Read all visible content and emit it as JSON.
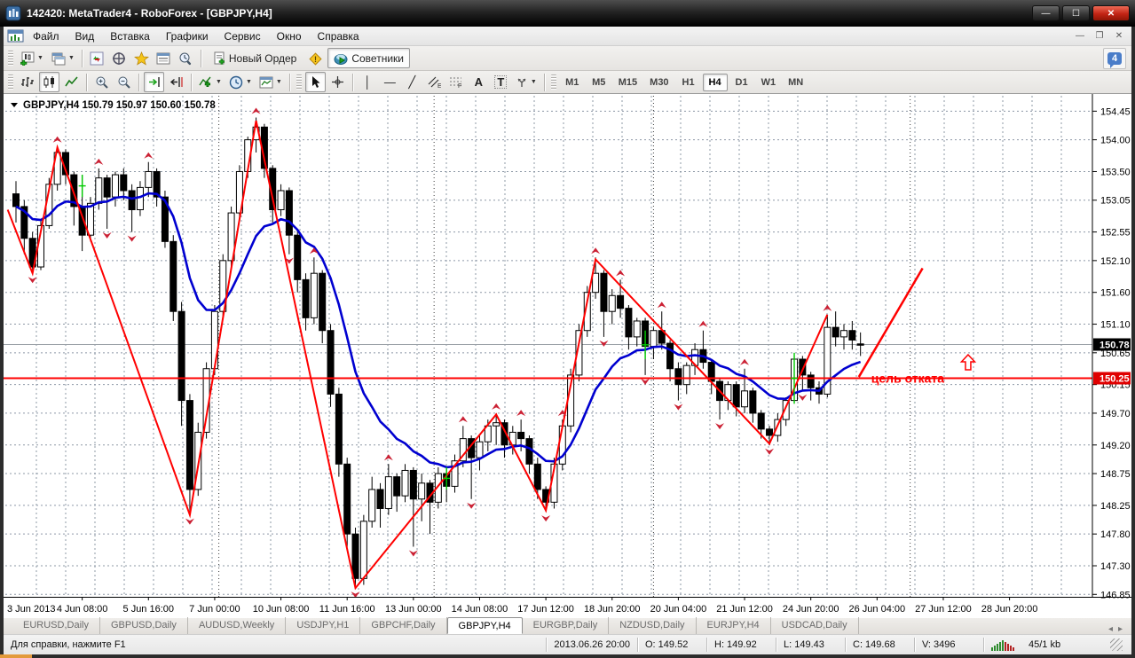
{
  "window": {
    "title": "142420: MetaTrader4 - RoboForex - [GBPJPY,H4]"
  },
  "menu": {
    "items": [
      "Файл",
      "Вид",
      "Вставка",
      "Графики",
      "Сервис",
      "Окно",
      "Справка"
    ]
  },
  "toolbar1": {
    "new_order_label": "Новый Ордер",
    "advisors_label": "Советники",
    "community_badge": "4"
  },
  "timeframes": {
    "items": [
      "M1",
      "M5",
      "M15",
      "M30",
      "H1",
      "H4",
      "D1",
      "W1",
      "MN"
    ],
    "active": "H4"
  },
  "drawing_tools": {
    "text_tool": "A",
    "label_tool": "T",
    "channel_tag": "E",
    "fibo_tag": "F"
  },
  "chart": {
    "symbol_header": "GBPJPY,H4",
    "ohlc_header": "150.79 150.97 150.60 150.78",
    "price_ticks": [
      "154.45",
      "154.00",
      "153.50",
      "153.05",
      "152.55",
      "152.10",
      "151.60",
      "151.10",
      "150.65",
      "150.15",
      "149.70",
      "149.20",
      "148.75",
      "148.25",
      "147.80",
      "147.30",
      "146.85"
    ],
    "time_labels": [
      "3 Jun 2013",
      "4 Jun 08:00",
      "5 Jun 16:00",
      "7 Jun 00:00",
      "10 Jun 08:00",
      "11 Jun 16:00",
      "13 Jun 00:00",
      "14 Jun 08:00",
      "17 Jun 12:00",
      "18 Jun 20:00",
      "20 Jun 04:00",
      "21 Jun 12:00",
      "24 Jun 20:00",
      "26 Jun 04:00",
      "27 Jun 12:00",
      "28 Jun 20:00"
    ],
    "bid_price": 150.78,
    "bid_label": "150.78",
    "hline_price": 150.25,
    "hline_label": "150.25",
    "annotation": {
      "text": "цель отката",
      "bar": 103.3,
      "price": 150.25
    },
    "big_arrow": {
      "bar": 115,
      "price": 150.62
    },
    "colors": {
      "bull": "#ffffff",
      "bear": "#000000",
      "wick": "#000000",
      "ma": "#0000d0",
      "zigzag": "#ff0000",
      "hline": "#ff0000",
      "bid_line": "#9aa0a6",
      "grid": "#8d98a6",
      "fractal": "#cb2134",
      "marker": "#00cc00",
      "annotation": "#ff0000"
    },
    "candles": [
      [
        153.15,
        153.35,
        152.7,
        152.95
      ],
      [
        152.95,
        153.05,
        152.2,
        152.45
      ],
      [
        152.45,
        152.55,
        151.9,
        152.0
      ],
      [
        152.0,
        152.75,
        151.95,
        152.65
      ],
      [
        152.65,
        153.4,
        152.6,
        153.3
      ],
      [
        153.3,
        153.9,
        153.2,
        153.8
      ],
      [
        153.8,
        153.85,
        153.3,
        153.45
      ],
      [
        153.45,
        153.5,
        152.65,
        152.95
      ],
      [
        152.95,
        153.45,
        152.25,
        152.5
      ],
      [
        152.5,
        153.1,
        152.4,
        153.0
      ],
      [
        153.0,
        153.55,
        152.9,
        153.4
      ],
      [
        153.4,
        153.45,
        152.6,
        153.1
      ],
      [
        153.1,
        153.5,
        152.95,
        153.45
      ],
      [
        153.45,
        153.55,
        153.05,
        153.2
      ],
      [
        153.2,
        153.3,
        152.55,
        152.9
      ],
      [
        152.9,
        153.35,
        152.8,
        153.25
      ],
      [
        153.25,
        153.65,
        153.1,
        153.5
      ],
      [
        153.5,
        153.55,
        152.95,
        153.1
      ],
      [
        153.1,
        153.2,
        152.3,
        152.4
      ],
      [
        152.4,
        152.5,
        151.15,
        151.3
      ],
      [
        151.3,
        151.45,
        149.5,
        149.9
      ],
      [
        149.9,
        150.0,
        148.1,
        148.5
      ],
      [
        148.5,
        149.55,
        148.4,
        149.4
      ],
      [
        149.4,
        150.5,
        149.3,
        150.4
      ],
      [
        150.4,
        151.4,
        150.3,
        151.3
      ],
      [
        151.3,
        152.2,
        151.2,
        152.1
      ],
      [
        152.1,
        152.95,
        152.0,
        152.85
      ],
      [
        152.85,
        153.6,
        152.75,
        153.5
      ],
      [
        153.5,
        154.05,
        153.4,
        154.0
      ],
      [
        154.0,
        154.35,
        153.8,
        154.2
      ],
      [
        154.2,
        154.25,
        153.4,
        153.55
      ],
      [
        153.55,
        153.6,
        152.7,
        152.9
      ],
      [
        152.9,
        153.3,
        152.8,
        153.2
      ],
      [
        153.2,
        153.25,
        152.2,
        152.5
      ],
      [
        152.5,
        152.6,
        151.6,
        151.8
      ],
      [
        151.8,
        151.9,
        151.0,
        151.2
      ],
      [
        151.2,
        152.15,
        151.1,
        151.9
      ],
      [
        151.9,
        151.95,
        150.8,
        151.0
      ],
      [
        151.0,
        151.1,
        149.8,
        150.0
      ],
      [
        150.0,
        150.1,
        148.7,
        148.9
      ],
      [
        148.9,
        149.0,
        147.6,
        147.8
      ],
      [
        147.8,
        147.9,
        146.95,
        147.1
      ],
      [
        147.1,
        148.1,
        147.0,
        148.0
      ],
      [
        148.0,
        148.7,
        147.9,
        148.5
      ],
      [
        148.5,
        148.6,
        147.9,
        148.2
      ],
      [
        148.2,
        148.9,
        148.1,
        148.7
      ],
      [
        148.7,
        148.75,
        148.15,
        148.4
      ],
      [
        148.4,
        148.9,
        148.3,
        148.8
      ],
      [
        148.8,
        148.85,
        147.6,
        148.35
      ],
      [
        148.35,
        148.75,
        148.0,
        148.6
      ],
      [
        148.6,
        148.65,
        147.8,
        148.3
      ],
      [
        148.3,
        148.85,
        148.2,
        148.75
      ],
      [
        148.75,
        148.85,
        148.3,
        148.55
      ],
      [
        148.55,
        149.05,
        148.45,
        148.95
      ],
      [
        148.95,
        149.5,
        148.85,
        149.3
      ],
      [
        149.3,
        149.35,
        148.35,
        149.0
      ],
      [
        149.0,
        149.35,
        148.8,
        149.25
      ],
      [
        149.25,
        149.6,
        149.1,
        149.5
      ],
      [
        149.5,
        149.7,
        149.2,
        149.55
      ],
      [
        149.55,
        149.6,
        149.0,
        149.2
      ],
      [
        149.2,
        149.5,
        149.05,
        149.4
      ],
      [
        149.4,
        149.6,
        149.1,
        149.3
      ],
      [
        149.3,
        149.35,
        148.75,
        148.9
      ],
      [
        148.9,
        149.0,
        148.35,
        148.5
      ],
      [
        148.5,
        148.55,
        148.15,
        148.3
      ],
      [
        148.3,
        149.0,
        148.2,
        148.9
      ],
      [
        148.9,
        149.6,
        148.8,
        149.5
      ],
      [
        149.5,
        150.4,
        149.4,
        150.3
      ],
      [
        150.3,
        151.1,
        150.2,
        151.0
      ],
      [
        151.0,
        151.7,
        150.9,
        151.6
      ],
      [
        151.6,
        152.15,
        151.5,
        151.9
      ],
      [
        151.9,
        151.95,
        150.9,
        151.3
      ],
      [
        151.3,
        151.65,
        151.1,
        151.55
      ],
      [
        151.55,
        151.8,
        151.2,
        151.35
      ],
      [
        151.35,
        151.4,
        150.7,
        150.9
      ],
      [
        150.9,
        151.2,
        150.75,
        151.15
      ],
      [
        151.15,
        151.2,
        150.3,
        150.75
      ],
      [
        150.75,
        151.05,
        150.55,
        151.0
      ],
      [
        151.0,
        151.3,
        150.7,
        150.8
      ],
      [
        150.8,
        150.85,
        150.2,
        150.4
      ],
      [
        150.4,
        150.5,
        149.9,
        150.15
      ],
      [
        150.15,
        150.5,
        150.0,
        150.45
      ],
      [
        150.45,
        150.8,
        150.3,
        150.7
      ],
      [
        150.7,
        151.0,
        150.4,
        150.5
      ],
      [
        150.5,
        150.55,
        150.0,
        150.2
      ],
      [
        150.2,
        150.25,
        149.6,
        149.9
      ],
      [
        149.9,
        150.2,
        149.75,
        150.15
      ],
      [
        150.15,
        150.2,
        149.65,
        149.8
      ],
      [
        149.8,
        150.4,
        149.7,
        150.05
      ],
      [
        150.05,
        150.1,
        149.55,
        149.7
      ],
      [
        149.7,
        149.75,
        149.3,
        149.45
      ],
      [
        149.45,
        149.5,
        149.2,
        149.35
      ],
      [
        149.35,
        149.7,
        149.25,
        149.6
      ],
      [
        149.6,
        149.95,
        149.5,
        149.9
      ],
      [
        149.9,
        150.6,
        149.85,
        150.55
      ],
      [
        150.55,
        150.6,
        150.05,
        150.3
      ],
      [
        150.3,
        150.35,
        149.9,
        150.1
      ],
      [
        150.1,
        150.2,
        149.85,
        150.0
      ],
      [
        150.0,
        151.25,
        149.95,
        151.05
      ],
      [
        151.05,
        151.3,
        150.75,
        150.9
      ],
      [
        150.9,
        151.1,
        150.7,
        151.0
      ],
      [
        151.0,
        151.15,
        150.7,
        150.85
      ],
      [
        150.79,
        150.97,
        150.6,
        150.78
      ]
    ],
    "fractals": {
      "up": [
        5,
        10,
        16,
        29,
        36,
        45,
        54,
        58,
        61,
        66,
        70,
        73,
        78,
        83,
        88,
        98
      ],
      "down": [
        2,
        11,
        14,
        21,
        33,
        41,
        48,
        55,
        64,
        71,
        76,
        80,
        85,
        91,
        95
      ]
    },
    "zigzag": [
      [
        -1,
        152.9
      ],
      [
        2,
        151.9
      ],
      [
        5,
        153.88
      ],
      [
        21,
        148.1
      ],
      [
        29,
        154.3
      ],
      [
        41,
        146.95
      ],
      [
        58,
        149.68
      ],
      [
        64,
        148.17
      ],
      [
        70,
        152.12
      ],
      [
        91,
        149.22
      ],
      [
        98,
        151.25
      ]
    ],
    "trendline": [
      [
        101.8,
        150.27
      ],
      [
        109.5,
        151.98
      ]
    ],
    "green_marks": [
      [
        8,
        153.45,
        153.1
      ],
      [
        52,
        148.85,
        148.5
      ],
      [
        76,
        151.0,
        150.55
      ],
      [
        94,
        150.65,
        149.85
      ]
    ],
    "separators": [
      24.5,
      50.5,
      77,
      108
    ],
    "ma_period": 13
  },
  "tabs": {
    "items": [
      "EURUSD,Daily",
      "GBPUSD,Daily",
      "AUDUSD,Weekly",
      "USDJPY,H1",
      "GBPCHF,Daily",
      "GBPJPY,H4",
      "EURGBP,Daily",
      "NZDUSD,Daily",
      "EURJPY,H4",
      "USDCAD,Daily"
    ],
    "active": "GBPJPY,H4"
  },
  "status": {
    "help": "Для справки, нажмите F1",
    "items": [
      "2013.06.26 20:00",
      "O: 149.52",
      "H: 149.92",
      "L: 149.43",
      "C: 149.68",
      "V: 3496"
    ],
    "size": "45/1 kb"
  }
}
